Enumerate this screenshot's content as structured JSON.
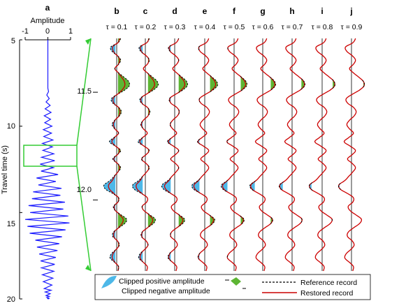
{
  "chart_data": [
    {
      "panel": "a",
      "type": "line",
      "xlabel": "Amplitude",
      "ylabel": "Travel time (s)",
      "xlim": [
        -1,
        1
      ],
      "ylim": [
        5,
        20
      ],
      "x_ticks": [
        -1,
        0,
        1
      ],
      "y_ticks": [
        5,
        10,
        15,
        20
      ],
      "y_reversed": true,
      "series": [
        {
          "color": "#1a1aff",
          "x": [
            0,
            0,
            0,
            0,
            0.03,
            -0.05,
            0.06,
            -0.08,
            0.1,
            -0.12,
            0.14,
            -0.16,
            0.12,
            -0.14,
            0.18,
            -0.2,
            0.16,
            -0.18,
            0.22,
            -0.24,
            0.2,
            -0.22,
            0.26,
            -0.28,
            0.3,
            -0.34,
            0.25,
            -0.3,
            0.45,
            -0.5,
            0.35,
            -0.42,
            0.6,
            -0.65,
            0.55,
            -0.7,
            0.75,
            -0.85,
            0.68,
            -0.78,
            0.9,
            -1.0,
            0.95,
            -0.9,
            0.78,
            -0.8,
            0.62,
            -0.55,
            0.5,
            -0.48,
            0.42,
            -0.38,
            0.35,
            -0.32,
            0.3,
            -0.28,
            0.26,
            -0.24,
            0.22,
            -0.2,
            0.18,
            -0.16,
            0.14,
            -0.12,
            0.1,
            -0.08,
            0.06,
            -0.05,
            0.04,
            -0.03,
            0.02,
            0
          ],
          "y": [
            5.0,
            6.0,
            7.0,
            7.8,
            8.0,
            8.2,
            8.4,
            8.6,
            8.8,
            9.0,
            9.2,
            9.4,
            9.6,
            9.8,
            10.0,
            10.2,
            10.4,
            10.6,
            10.8,
            11.0,
            11.2,
            11.4,
            11.6,
            11.8,
            12.0,
            12.2,
            12.4,
            12.6,
            12.8,
            13.0,
            13.2,
            13.4,
            13.6,
            13.8,
            14.0,
            14.2,
            14.4,
            14.6,
            14.8,
            15.0,
            15.2,
            15.4,
            15.6,
            15.8,
            16.0,
            16.2,
            16.4,
            16.6,
            16.8,
            17.0,
            17.2,
            17.4,
            17.6,
            17.8,
            18.0,
            18.2,
            18.4,
            18.6,
            18.8,
            19.0,
            19.2,
            19.4,
            19.5,
            19.6,
            19.7,
            19.8,
            19.85,
            19.9,
            19.95,
            19.97,
            19.99,
            20.0
          ]
        }
      ],
      "annotation": "zoom box 11.0 to 12.0 s"
    },
    {
      "panel": "b-j",
      "type": "line",
      "ylim": [
        11.25,
        12.33
      ],
      "y_ticks": [
        11.5,
        12.0
      ],
      "y_reversed": true,
      "series": [
        {
          "name": "Reference record",
          "style": "dashed",
          "color": "#000000"
        },
        {
          "name": "Restored record",
          "style": "solid",
          "color": "#cc0000"
        }
      ],
      "fills": [
        {
          "name": "Clipped positive amplitude",
          "color": "#5db533"
        },
        {
          "name": "Clipped negative amplitude",
          "color": "#4db8e8"
        }
      ],
      "reference_trace": {
        "t": [
          11.25,
          11.27,
          11.29,
          11.31,
          11.33,
          11.35,
          11.37,
          11.39,
          11.41,
          11.43,
          11.45,
          11.47,
          11.49,
          11.51,
          11.53,
          11.55,
          11.57,
          11.59,
          11.61,
          11.63,
          11.65,
          11.67,
          11.69,
          11.71,
          11.73,
          11.75,
          11.77,
          11.79,
          11.81,
          11.83,
          11.85,
          11.87,
          11.89,
          11.91,
          11.93,
          11.95,
          11.97,
          11.99,
          12.01,
          12.03,
          12.05,
          12.07,
          12.09,
          12.11,
          12.13,
          12.15,
          12.17,
          12.19,
          12.21,
          12.23,
          12.25,
          12.27,
          12.29,
          12.31,
          12.33
        ],
        "amplitude": [
          0.3,
          0.1,
          -0.45,
          -0.35,
          0.05,
          0.3,
          0.15,
          -0.15,
          0.15,
          0.55,
          0.9,
          0.95,
          0.6,
          0.05,
          -0.4,
          -0.3,
          0.15,
          0.35,
          0.2,
          -0.15,
          -0.35,
          -0.15,
          0.15,
          -0.2,
          -0.55,
          -0.1,
          0.3,
          0.05,
          -0.3,
          0.05,
          0.3,
          0.1,
          -0.2,
          -0.5,
          -0.95,
          -0.85,
          -0.3,
          0.15,
          0.1,
          -0.25,
          -0.1,
          0.35,
          0.75,
          0.6,
          0.15,
          -0.25,
          -0.3,
          0.05,
          0.2,
          -0.05,
          -0.4,
          -0.5,
          -0.15,
          0.15,
          0.1
        ]
      },
      "panels": [
        {
          "letter": "b",
          "tau": "τ = 0.1"
        },
        {
          "letter": "c",
          "tau": "τ = 0.2"
        },
        {
          "letter": "d",
          "tau": "τ = 0.3"
        },
        {
          "letter": "e",
          "tau": "τ = 0.4"
        },
        {
          "letter": "f",
          "tau": "τ = 0.5"
        },
        {
          "letter": "g",
          "tau": "τ = 0.6"
        },
        {
          "letter": "h",
          "tau": "τ = 0.7"
        },
        {
          "letter": "i",
          "tau": "τ = 0.8"
        },
        {
          "letter": "j",
          "tau": "τ = 0.9"
        }
      ],
      "tau_values": [
        0.1,
        0.2,
        0.3,
        0.4,
        0.5,
        0.6,
        0.7,
        0.8,
        0.9
      ]
    }
  ],
  "panel_a": {
    "letter": "a",
    "xlabel": "Amplitude",
    "ylabel": "Travel time (s)",
    "x_tick_labels": [
      "-1",
      "0",
      "1"
    ],
    "y_tick_labels": [
      "5",
      "10",
      "15",
      "20"
    ]
  },
  "zoom_tick_labels": [
    "11.5",
    "12.0"
  ],
  "legend": {
    "positive": "Clipped positive amplitude",
    "negative": "Clipped negative amplitude",
    "reference": "Reference record",
    "restored": "Restored record",
    "colors": {
      "positive": "#5db533",
      "negative": "#4db8e8",
      "reference": "#000000",
      "restored": "#cc0000"
    }
  },
  "colors": {
    "trace_a": "#1a1aff",
    "zoom_box": "#33cc33"
  }
}
